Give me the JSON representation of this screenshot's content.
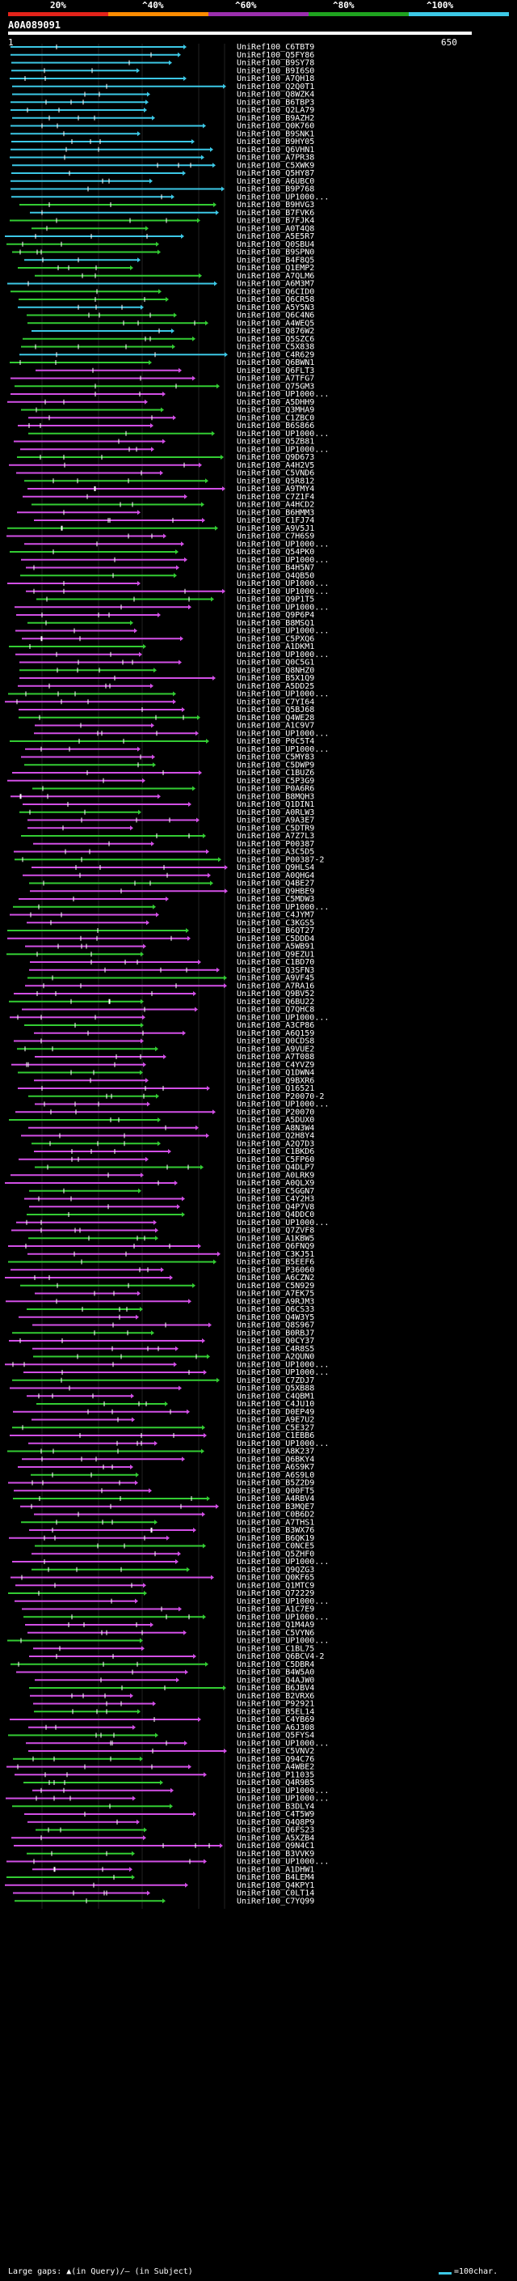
{
  "scale": {
    "ticks": [
      {
        "label": "20%"
      },
      {
        "label": "^40%"
      },
      {
        "label": "^60%"
      },
      {
        "label": "^80%"
      },
      {
        "label": "^100%"
      }
    ],
    "colors": [
      "#e4231a",
      "#ff8c00",
      "#9b2fae",
      "#1fa31f",
      "#3cc8e6"
    ]
  },
  "query": {
    "id": "A0A089091",
    "start": "1",
    "end": "650"
  },
  "colors": {
    "cyan": "#3cc8e6",
    "green": "#33cc33",
    "magenta": "#d24fe6",
    "gap": "#ffffff",
    "background": "#000000"
  },
  "legend": {
    "gaps_text": "Large gaps: ▲(in Query)/– (in Subject)",
    "scale_text": "=100char."
  },
  "hits": [
    "UniRef100_C6TBT9",
    "UniRef100_Q5FY86",
    "UniRef100_B9SY78",
    "UniRef100_B9I6S0",
    "UniRef100_A7QH18",
    "UniRef100_Q2Q0T1",
    "UniRef100_Q8WZK4",
    "UniRef100_B6TBP3",
    "UniRef100_Q2LA79",
    "UniRef100_B9AZH2",
    "UniRef100_Q0K760",
    "UniRef100_B9SNK1",
    "UniRef100_B9HY05",
    "UniRef100_Q6VHN1",
    "UniRef100_A7PR38",
    "UniRef100_C5XWK9",
    "UniRef100_Q5HY87",
    "UniRef100_A6UBC0",
    "UniRef100_B9P768",
    "UniRef100_UP1000...",
    "UniRef100_B9HVG3",
    "UniRef100_B7FVK6",
    "UniRef100_B7FJK4",
    "UniRef100_A0T4Q8",
    "UniRef100_A5E5R7",
    "UniRef100_Q0SBU4",
    "UniRef100_B9SPN0",
    "UniRef100_B4F8Q5",
    "UniRef100_Q1EMP2",
    "UniRef100_A7QLM6",
    "UniRef100_A6M3M7",
    "UniRef100_Q6CID0",
    "UniRef100_Q6CR58",
    "UniRef100_A5Y5N3",
    "UniRef100_Q6C4N6",
    "UniRef100_A4WEQ5",
    "UniRef100_Q876W2",
    "UniRef100_Q5SZC6",
    "UniRef100_C5X838",
    "UniRef100_C4R629",
    "UniRef100_Q6BWN1",
    "UniRef100_Q6FLT3",
    "UniRef100_A7TFG7",
    "UniRef100_Q75GM3",
    "UniRef100_UP1000...",
    "UniRef100_A5DHH9",
    "UniRef100_Q3MHA9",
    "UniRef100_C1ZBC0",
    "UniRef100_B6S866",
    "UniRef100_UP1000...",
    "UniRef100_Q5ZB81",
    "UniRef100_UP1000...",
    "UniRef100_Q9D673",
    "UniRef100_A4H2V5",
    "UniRef100_C5VND6",
    "UniRef100_Q5R812",
    "UniRef100_A9TMY4",
    "UniRef100_C7Z1F4",
    "UniRef100_A4HCD2",
    "UniRef100_B6HMM3",
    "UniRef100_C1FJ74",
    "UniRef100_A9V5J1",
    "UniRef100_C7H6S9",
    "UniRef100_UP1000...",
    "UniRef100_Q54PK0",
    "UniRef100_UP1000...",
    "UniRef100_B4H5N7",
    "UniRef100_Q4QB50",
    "UniRef100_UP1000...",
    "UniRef100_UP1000...",
    "UniRef100_Q9P1T5",
    "UniRef100_UP1000...",
    "UniRef100_Q9P6P4",
    "UniRef100_B8MSQ1",
    "UniRef100_UP1000...",
    "UniRef100_C5PXQ6",
    "UniRef100_A1DKM1",
    "UniRef100_UP1000...",
    "UniRef100_Q0C5G1",
    "UniRef100_Q8NHZ0",
    "UniRef100_B5X1Q9",
    "UniRef100_A5DD25",
    "UniRef100_UP1000...",
    "UniRef100_C7YI64",
    "UniRef100_Q5BJ68",
    "UniRef100_Q4WE28",
    "UniRef100_A1C9V7",
    "UniRef100_UP1000...",
    "UniRef100_P0C5T4",
    "UniRef100_UP1000...",
    "UniRef100_C5MY83",
    "UniRef100_C5DWP9",
    "UniRef100_C1BUZ6",
    "UniRef100_C5P3G9",
    "UniRef100_P0A6R6",
    "UniRef100_B8MQH3",
    "UniRef100_Q1DIN1",
    "UniRef100_A0RLW3",
    "UniRef100_A9A3E7",
    "UniRef100_C5DTR9",
    "UniRef100_A7Z7L3",
    "UniRef100_P00387",
    "UniRef100_A3C5D5",
    "UniRef100_P00387-2",
    "UniRef100_Q9HLS4",
    "UniRef100_A0QHG4",
    "UniRef100_Q4BE27",
    "UniRef100_Q9HBE9",
    "UniRef100_C5MDW3",
    "UniRef100_UP1000...",
    "UniRef100_C4JYM7",
    "UniRef100_C3KGS5",
    "UniRef100_B6QT27",
    "UniRef100_C5DDD4",
    "UniRef100_A5WB91",
    "UniRef100_Q9EZU1",
    "UniRef100_C1BD70",
    "UniRef100_Q3SFN3",
    "UniRef100_A9VF45",
    "UniRef100_A7RA16",
    "UniRef100_Q9BV52",
    "UniRef100_Q6BU22",
    "UniRef100_Q7QHC8",
    "UniRef100_UP1000...",
    "UniRef100_A3CP86",
    "UniRef100_A6Q159",
    "UniRef100_Q0CDS8",
    "UniRef100_A9VUE2",
    "UniRef100_A7T088",
    "UniRef100_C4YVZ9",
    "UniRef100_Q1DWN4",
    "UniRef100_Q9BXR6",
    "UniRef100_Q16521",
    "UniRef100_P20070-2",
    "UniRef100_UP1000...",
    "UniRef100_P20070",
    "UniRef100_A5DUX0",
    "UniRef100_A8N3W4",
    "UniRef100_Q2H8Y4",
    "UniRef100_A2Q7D3",
    "UniRef100_C1BKD6",
    "UniRef100_C5FP60",
    "UniRef100_Q4DLP7",
    "UniRef100_A0LRK9",
    "UniRef100_A0QLX9",
    "UniRef100_C5GGN7",
    "UniRef100_C4Y2H3",
    "UniRef100_Q4P7V8",
    "UniRef100_Q4DDC0",
    "UniRef100_UP1000...",
    "UniRef100_Q7ZVF8",
    "UniRef100_A1KBW5",
    "UniRef100_Q6FNQ9",
    "UniRef100_C3KJ51",
    "UniRef100_B5EEF6",
    "UniRef100_P36060",
    "UniRef100_A6CZN2",
    "UniRef100_C5N929",
    "UniRef100_A7EK75",
    "UniRef100_A9RJM3",
    "UniRef100_Q6CS33",
    "UniRef100_Q4W3Y5",
    "UniRef100_Q8S967",
    "UniRef100_B0RBJ7",
    "UniRef100_Q0CY37",
    "UniRef100_C4R8S5",
    "UniRef100_A2QUN0",
    "UniRef100_UP1000...",
    "UniRef100_UP1000...",
    "UniRef100_C7ZDJ7",
    "UniRef100_Q5XB88",
    "UniRef100_C4QBM1",
    "UniRef100_C4JU10",
    "UniRef100_D0EP49",
    "UniRef100_A9E7U2",
    "UniRef100_C5E327",
    "UniRef100_C1EBB6",
    "UniRef100_UP1000...",
    "UniRef100_A8K237",
    "UniRef100_Q6BKY4",
    "UniRef100_A6S9K7",
    "UniRef100_A6S9L0",
    "UniRef100_B5Z2D9",
    "UniRef100_Q00FT5",
    "UniRef100_A4RBV4",
    "UniRef100_B3MQE7",
    "UniRef100_C0B6D2",
    "UniRef100_A7THS1",
    "UniRef100_B3WX76",
    "UniRef100_B6QK19",
    "UniRef100_C0NCE5",
    "UniRef100_Q5ZHF0",
    "UniRef100_UP1000...",
    "UniRef100_Q9QZG3",
    "UniRef100_Q0KF65",
    "UniRef100_Q1MTC9",
    "UniRef100_Q72229",
    "UniRef100_UP1000...",
    "UniRef100_A1C7E9",
    "UniRef100_UP1000...",
    "UniRef100_Q1M4A9",
    "UniRef100_C5VYN6",
    "UniRef100_UP1000...",
    "UniRef100_C1BL75",
    "UniRef100_Q6BCV4-2",
    "UniRef100_C5DBR4",
    "UniRef100_B4W5A0",
    "UniRef100_Q4AJW0",
    "UniRef100_B6JBV4",
    "UniRef100_B2VRX6",
    "UniRef100_P92921",
    "UniRef100_B5EL14",
    "UniRef100_C4YB69",
    "UniRef100_A6J308",
    "UniRef100_Q5FYS4",
    "UniRef100_UP1000...",
    "UniRef100_C5VNV2",
    "UniRef100_Q94C76",
    "UniRef100_A4WBE2",
    "UniRef100_P11035",
    "UniRef100_Q4R9B5",
    "UniRef100_UP1000...",
    "UniRef100_UP1000...",
    "UniRef100_B3DLY4",
    "UniRef100_C4T5W9",
    "UniRef100_Q4Q8P9",
    "UniRef100_Q6FS23",
    "UniRef100_A5XZB4",
    "UniRef100_Q9N4C1",
    "UniRef100_B3VVK9",
    "UniRef100_UP1000...",
    "UniRef100_A1DHW1",
    "UniRef100_B4LEM4",
    "UniRef100_Q4KPY1",
    "UniRef100_C0LT14",
    "UniRef100_C7YQ99"
  ]
}
